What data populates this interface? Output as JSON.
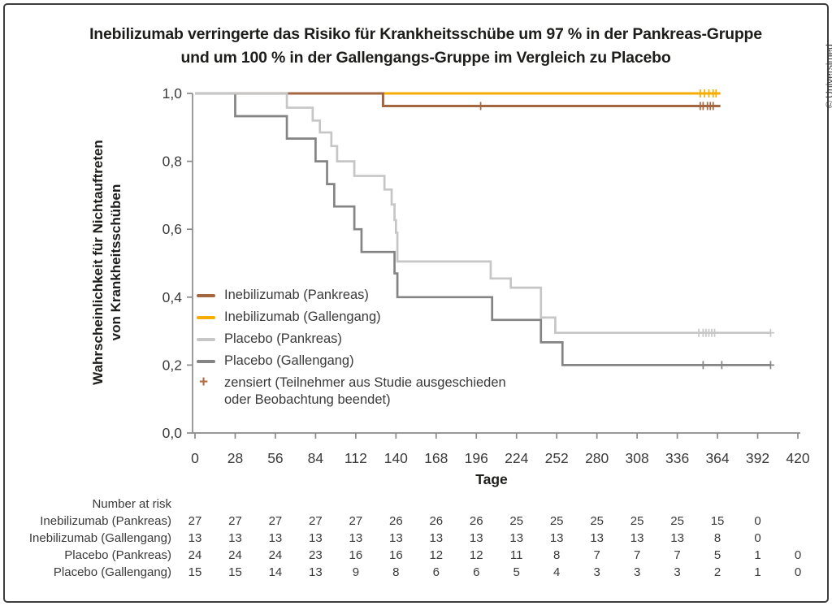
{
  "title": {
    "line1": "Inebilizumab verringerte das Risiko für Krankheitsschübe um 97 % in der Pankreas-Gruppe",
    "line2": "und um 100 % in der Gallengangs-Gruppe im Vergleich zu Placebo"
  },
  "copyright": "© Universimed",
  "chart_data": {
    "type": "line",
    "subtype": "kaplan-meier-step-curves",
    "xlabel": "Tage",
    "ylabel_line1": "Wahrscheinlichkeit für Nichtauftreten",
    "ylabel_line2": "von Krankheitsschüben",
    "xlim": [
      0,
      420
    ],
    "ylim": [
      0.0,
      1.0
    ],
    "grid": false,
    "x_ticks": [
      0,
      28,
      56,
      84,
      112,
      140,
      168,
      196,
      224,
      252,
      280,
      308,
      336,
      364,
      392,
      420
    ],
    "y_ticks": [
      "0,0",
      "0,2",
      "0,4",
      "0,6",
      "0,8",
      "1,0"
    ],
    "y_tick_values": [
      0,
      0.2,
      0.4,
      0.6,
      0.8,
      1.0
    ],
    "axis_color": "#8a8a8a",
    "tick_label_color": "#3a3a3a",
    "draw_order": [
      1,
      0,
      3,
      2
    ],
    "series": [
      {
        "name": "Inebilizumab (Pankreas)",
        "color": "#A4663F",
        "start": 1.0,
        "knots": [
          [
            131,
            0.963
          ]
        ],
        "end": 366,
        "censors": [
          [
            199,
            0.963
          ],
          [
            352,
            0.963
          ],
          [
            354,
            0.963
          ],
          [
            357,
            0.963
          ],
          [
            359,
            0.963
          ],
          [
            361,
            0.963
          ]
        ]
      },
      {
        "name": "Inebilizumab (Gallengang)",
        "color": "#F6AC00",
        "start": 1.0,
        "knots": [],
        "end": 366,
        "censors": [
          [
            352,
            1.0
          ],
          [
            355,
            1.0
          ],
          [
            358,
            1.0
          ],
          [
            361,
            1.0
          ],
          [
            363,
            1.0
          ]
        ]
      },
      {
        "name": "Placebo (Pankreas)",
        "color": "#C6C6C6",
        "start": 1.0,
        "knots": [
          [
            64,
            0.958
          ],
          [
            82,
            0.92
          ],
          [
            87,
            0.885
          ],
          [
            95,
            0.845
          ],
          [
            99,
            0.8
          ],
          [
            111,
            0.757
          ],
          [
            132,
            0.717
          ],
          [
            137,
            0.673
          ],
          [
            139,
            0.627
          ],
          [
            140,
            0.59
          ],
          [
            141,
            0.505
          ],
          [
            206,
            0.455
          ],
          [
            220,
            0.428
          ],
          [
            241,
            0.34
          ],
          [
            251,
            0.295
          ]
        ],
        "end": 401,
        "censors": [
          [
            351,
            0.295
          ],
          [
            354,
            0.295
          ],
          [
            356,
            0.295
          ],
          [
            358,
            0.295
          ],
          [
            360,
            0.295
          ],
          [
            362,
            0.295
          ],
          [
            401,
            0.295
          ]
        ]
      },
      {
        "name": "Placebo (Gallengang)",
        "color": "#848484",
        "start": 1.0,
        "knots": [
          [
            28,
            0.933
          ],
          [
            64,
            0.867
          ],
          [
            84,
            0.8
          ],
          [
            92,
            0.733
          ],
          [
            97,
            0.667
          ],
          [
            111,
            0.6
          ],
          [
            116,
            0.533
          ],
          [
            139,
            0.47
          ],
          [
            141,
            0.4
          ],
          [
            207,
            0.333
          ],
          [
            241,
            0.267
          ],
          [
            256,
            0.2
          ]
        ],
        "end": 401,
        "censors": [
          [
            354,
            0.2
          ],
          [
            367,
            0.2
          ],
          [
            401,
            0.2
          ]
        ]
      }
    ],
    "legend": {
      "position": "inside-lower-left",
      "censored_symbol": "+",
      "censored_color": "#B26B42",
      "censored_label": "zensiert (Teilnehmer aus Studie ausgeschieden\noder Beobachtung beendet)"
    }
  },
  "risk_table": {
    "header": "Number at risk",
    "rows": [
      {
        "label": "Inebilizumab (Pankreas)",
        "values": [
          27,
          27,
          27,
          27,
          27,
          26,
          26,
          26,
          25,
          25,
          25,
          25,
          25,
          15,
          0
        ]
      },
      {
        "label": "Inebilizumab (Gallengang)",
        "values": [
          13,
          13,
          13,
          13,
          13,
          13,
          13,
          13,
          13,
          13,
          13,
          13,
          13,
          8,
          0
        ]
      },
      {
        "label": "Placebo (Pankreas)",
        "values": [
          24,
          24,
          24,
          23,
          16,
          16,
          12,
          12,
          11,
          8,
          7,
          7,
          7,
          5,
          1,
          0
        ]
      },
      {
        "label": "Placebo (Gallengang)",
        "values": [
          15,
          15,
          14,
          13,
          9,
          8,
          6,
          6,
          5,
          4,
          3,
          3,
          3,
          2,
          1,
          0
        ]
      }
    ]
  }
}
